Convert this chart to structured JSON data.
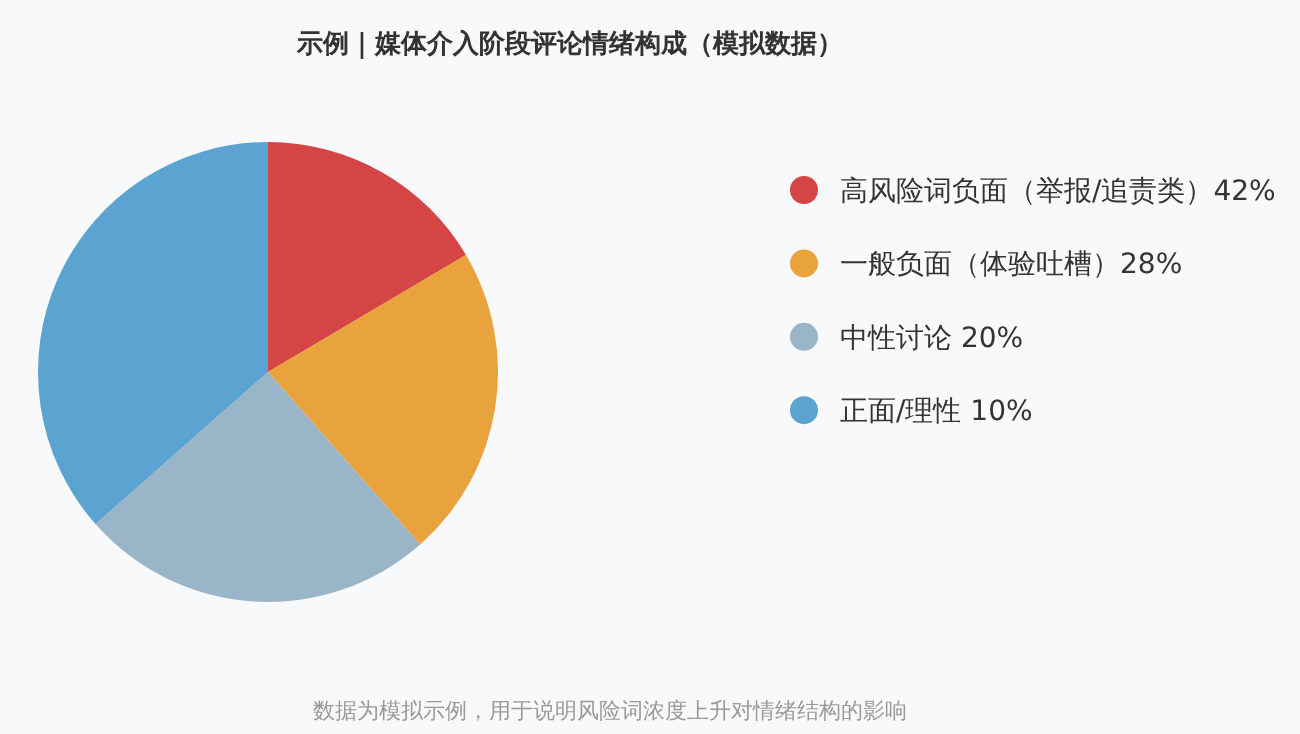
{
  "chart_data": {
    "type": "pie",
    "title": "示例｜媒体介入阶段评论情绪构成（模拟数据）",
    "categories": [
      "高风险词负面（举报/追责类）42%",
      "一般负面（体验吐槽）28%",
      "中性讨论 20%",
      "正面/理性 10%"
    ],
    "values": [
      16.5,
      22,
      25,
      36.5
    ],
    "colors": [
      "#d64545",
      "#e8a33d",
      "#9ab5c8",
      "#5ba3d0"
    ],
    "legend": "right",
    "annotations": [
      "数据为模拟示例，用于说明风险词浓度上升对情绪结构的影响"
    ]
  }
}
